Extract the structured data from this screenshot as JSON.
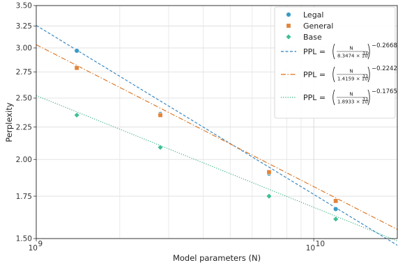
{
  "chart_data": {
    "type": "scatter",
    "xlabel": "Model parameters (N)",
    "ylabel": "Perplexity",
    "x_scale": "log",
    "y_scale": "log",
    "xlim": [
      1000000000,
      20000000000
    ],
    "ylim": [
      1.5,
      3.5
    ],
    "x_ticks": [
      {
        "value": 1000000000,
        "base": "10",
        "exp": "9"
      },
      {
        "value": 10000000000,
        "base": "10",
        "exp": "10"
      }
    ],
    "y_ticks": [
      {
        "value": 1.5,
        "label": "1.50"
      },
      {
        "value": 1.75,
        "label": "1.75"
      },
      {
        "value": 2.0,
        "label": "2.00"
      },
      {
        "value": 2.25,
        "label": "2.25"
      },
      {
        "value": 2.5,
        "label": "2.50"
      },
      {
        "value": 2.75,
        "label": "2.75"
      },
      {
        "value": 3.0,
        "label": "3.00"
      },
      {
        "value": 3.25,
        "label": "3.25"
      },
      {
        "value": 3.5,
        "label": "3.50"
      }
    ],
    "grid": true,
    "legend_position": "top-right",
    "series": [
      {
        "name": "Legal",
        "marker": "circle",
        "color": "#3a9bc7",
        "points": [
          {
            "x": 1400000000,
            "y": 2.97
          },
          {
            "x": 2800000000,
            "y": 2.36
          },
          {
            "x": 6900000000,
            "y": 1.9
          },
          {
            "x": 12000000000,
            "y": 1.67
          }
        ]
      },
      {
        "name": "General",
        "marker": "square",
        "color": "#e1843a",
        "points": [
          {
            "x": 1400000000,
            "y": 2.79
          },
          {
            "x": 2800000000,
            "y": 2.35
          },
          {
            "x": 6900000000,
            "y": 1.91
          },
          {
            "x": 12000000000,
            "y": 1.72
          }
        ]
      },
      {
        "name": "Base",
        "marker": "diamond",
        "color": "#3fbf95",
        "points": [
          {
            "x": 1400000000,
            "y": 2.35
          },
          {
            "x": 2800000000,
            "y": 2.09
          },
          {
            "x": 6900000000,
            "y": 1.75
          },
          {
            "x": 12000000000,
            "y": 1.61
          }
        ]
      }
    ],
    "fits": [
      {
        "color": "#2a7fbf",
        "dash": "4,2.5",
        "coef": 83474000000,
        "exponent": -0.2668,
        "label": {
          "lhs": "PPL = ",
          "num": "N",
          "den_mant": "8.3474 × 10",
          "den_exp": "10",
          "power": "−0.2668"
        }
      },
      {
        "color": "#d9701c",
        "dash": "7,2.5,1.5,2.5",
        "coef": 141590000000,
        "exponent": -0.2242,
        "label": {
          "lhs": "PPL = ",
          "num": "N",
          "den_mant": "1.4159 × 10",
          "den_exp": "11",
          "power": "−0.2242"
        }
      },
      {
        "color": "#2fae78",
        "dash": "1.2,2",
        "coef": 189330000000,
        "exponent": -0.1765,
        "label": {
          "lhs": "PPL = ",
          "num": "N",
          "den_mant": "1.8933 × 10",
          "den_exp": "11",
          "power": "−0.1765"
        }
      }
    ]
  }
}
